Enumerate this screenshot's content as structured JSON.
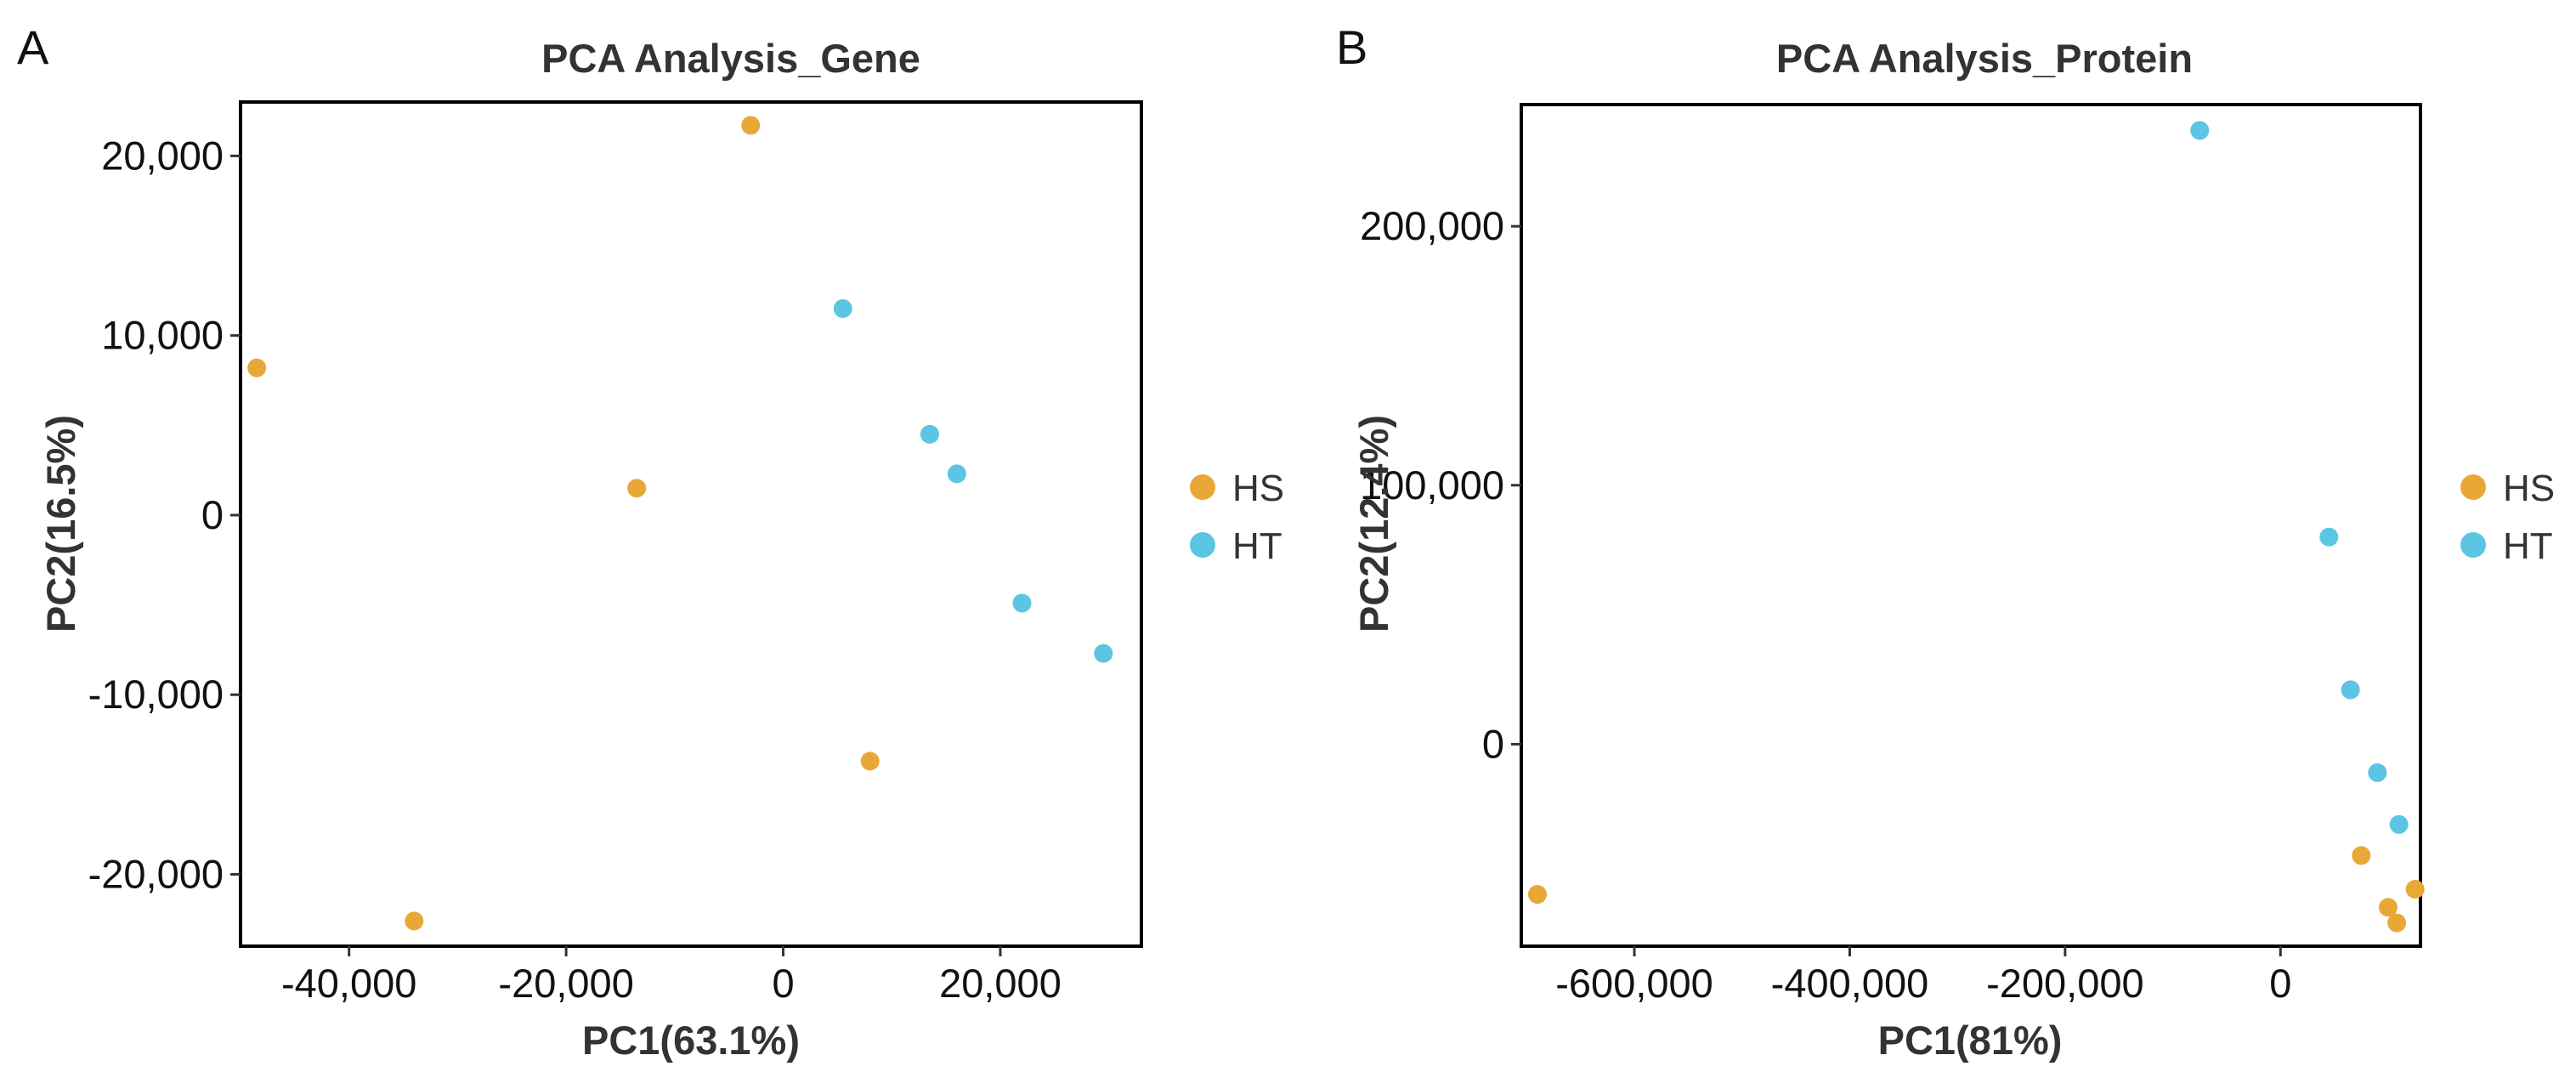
{
  "chart_data": [
    {
      "type": "scatter",
      "panel": "A",
      "title": "PCA Analysis_Gene",
      "xlabel": "PC1(63.1%)",
      "ylabel": "PC2(16.5%)",
      "xlim": [
        -50000,
        33000
      ],
      "ylim": [
        -24000,
        23000
      ],
      "xticks": [
        -40000,
        -20000,
        0,
        20000
      ],
      "xtick_labels": [
        "-40,000",
        "-20,000",
        "0",
        "20,000"
      ],
      "yticks": [
        -20000,
        -10000,
        0,
        10000,
        20000
      ],
      "ytick_labels": [
        "-20,000",
        "-10,000",
        "0",
        "10,000",
        "20,000"
      ],
      "grid": false,
      "legend_position": "right",
      "series": [
        {
          "name": "HS",
          "color": "#E8A838",
          "points": [
            {
              "x": -3000,
              "y": 21700
            },
            {
              "x": -48500,
              "y": 8200
            },
            {
              "x": -13500,
              "y": 1500
            },
            {
              "x": 8000,
              "y": -13700
            },
            {
              "x": -34000,
              "y": -22600
            }
          ]
        },
        {
          "name": "HT",
          "color": "#5BC5E3",
          "points": [
            {
              "x": 5500,
              "y": 11500
            },
            {
              "x": 13500,
              "y": 4500
            },
            {
              "x": 16000,
              "y": 2300
            },
            {
              "x": 22000,
              "y": -4900
            },
            {
              "x": 29500,
              "y": -7700
            }
          ]
        }
      ]
    },
    {
      "type": "scatter",
      "panel": "B",
      "title": "PCA Analysis_Protein",
      "xlabel": "PC1(81%)",
      "ylabel": "PC2(12.4%)",
      "xlim": [
        -705000,
        130000
      ],
      "ylim": [
        -78000,
        247000
      ],
      "xticks": [
        -600000,
        -400000,
        -200000,
        0
      ],
      "xtick_labels": [
        "-600,000",
        "-400,000",
        "-200,000",
        "0"
      ],
      "yticks": [
        0,
        100000,
        200000
      ],
      "ytick_labels": [
        "0",
        "100,000",
        "200,000"
      ],
      "grid": false,
      "legend_position": "right",
      "series": [
        {
          "name": "HS",
          "color": "#E8A838",
          "points": [
            {
              "x": -690000,
              "y": -58000
            },
            {
              "x": 75000,
              "y": -43000
            },
            {
              "x": 125000,
              "y": -56000
            },
            {
              "x": 100000,
              "y": -63000
            },
            {
              "x": 108000,
              "y": -69000
            }
          ]
        },
        {
          "name": "HT",
          "color": "#5BC5E3",
          "points": [
            {
              "x": -75000,
              "y": 237000
            },
            {
              "x": 45000,
              "y": 80000
            },
            {
              "x": 65000,
              "y": 21000
            },
            {
              "x": 90000,
              "y": -11000
            },
            {
              "x": 110000,
              "y": -31000
            }
          ]
        }
      ]
    }
  ]
}
